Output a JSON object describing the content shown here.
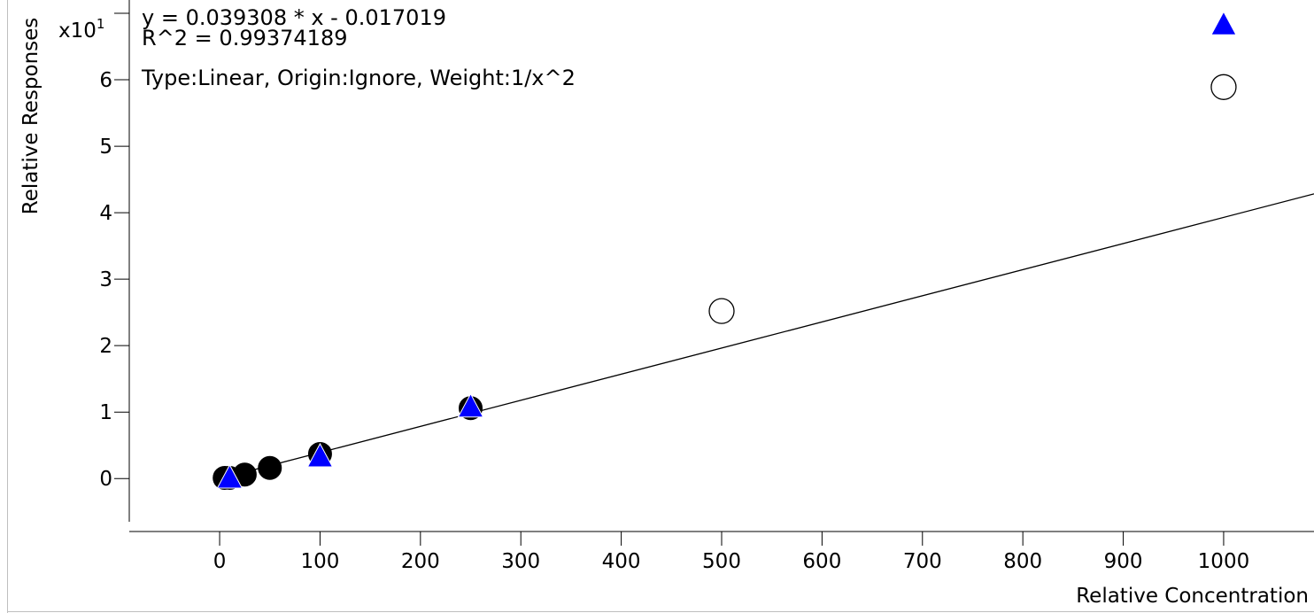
{
  "chart_data": {
    "type": "scatter",
    "title": "",
    "xlabel": "Relative Concentration",
    "ylabel": "Relative Responses",
    "y_multiplier": {
      "base": "x10",
      "exponent": "1"
    },
    "xlim": [
      -90,
      1090
    ],
    "ylim": [
      -6.5,
      72
    ],
    "x_ticks": [
      0,
      100,
      200,
      300,
      400,
      500,
      600,
      700,
      800,
      900,
      1000
    ],
    "y_ticks": [
      0,
      10,
      20,
      30,
      40,
      50,
      60
    ],
    "y_tick_labels": [
      "0",
      "1",
      "2",
      "3",
      "4",
      "5",
      "6"
    ],
    "grid": false,
    "annotations": [
      "y = 0.039308 * x  - 0.017019",
      "R^2 = 0.99374189",
      "Type:Linear, Origin:Ignore, Weight:1/x^2"
    ],
    "fit_line": {
      "slope": 0.039308,
      "intercept": -0.017019,
      "x_range": [
        0,
        1090
      ],
      "color": "#000000"
    },
    "series": [
      {
        "marker": "filled-circle",
        "color": "#000000",
        "x": [
          5,
          10,
          25,
          50,
          100,
          250
        ],
        "y": [
          0.1,
          0.1,
          0.6,
          1.6,
          3.7,
          10.6
        ]
      },
      {
        "marker": "open-circle",
        "color": "#000000",
        "x": [
          500,
          1000
        ],
        "y": [
          25.2,
          58.9
        ]
      },
      {
        "marker": "triangle",
        "color": "#0000ff",
        "x": [
          10,
          100,
          250,
          1000
        ],
        "y": [
          0.3,
          3.5,
          11.0,
          68.5
        ]
      }
    ]
  }
}
